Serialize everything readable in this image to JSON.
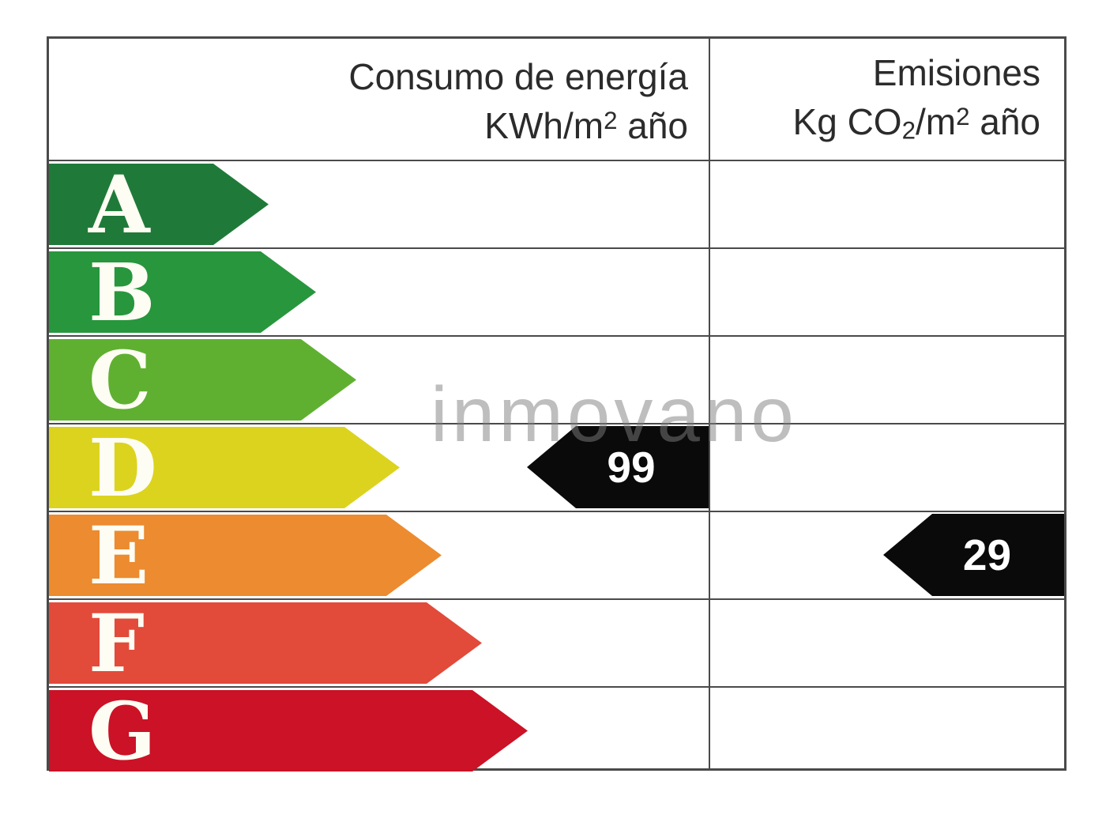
{
  "header": {
    "consumption": {
      "line1": "Consumo de energía",
      "line2_prefix": "KWh/m",
      "line2_sup": "2",
      "line2_suffix": " año"
    },
    "emissions": {
      "line1": "Emisiones",
      "line2_prefix": "Kg CO",
      "line2_sub": "2",
      "line2_mid": "/m",
      "line2_sup": "2",
      "line2_suffix": " año"
    }
  },
  "scale": {
    "rows": [
      {
        "letter": "A",
        "color": "#1f7a39"
      },
      {
        "letter": "B",
        "color": "#27963d"
      },
      {
        "letter": "C",
        "color": "#5fb031"
      },
      {
        "letter": "D",
        "color": "#dcd31f"
      },
      {
        "letter": "E",
        "color": "#ec8b2f"
      },
      {
        "letter": "F",
        "color": "#e24a3a"
      },
      {
        "letter": "G",
        "color": "#cb1226"
      }
    ]
  },
  "ratings": {
    "consumption": {
      "value": "99",
      "letter": "D",
      "marker_color": "#0a0a0a",
      "text_color": "#ffffff"
    },
    "emissions": {
      "value": "29",
      "letter": "E",
      "marker_color": "#0a0a0a",
      "text_color": "#ffffff"
    }
  },
  "watermark": {
    "text": "inmovano"
  },
  "colors": {
    "border": "#4a4a4a",
    "header_text": "#2b2b2b",
    "background": "#ffffff"
  },
  "chart_data": {
    "type": "table",
    "title": "Etiqueta de eficiencia energética",
    "columns": [
      "Consumo de energía KWh/m2 año",
      "Emisiones Kg CO2/m2 año"
    ],
    "scale_letters": [
      "A",
      "B",
      "C",
      "D",
      "E",
      "F",
      "G"
    ],
    "scale_colors": [
      "#1f7a39",
      "#27963d",
      "#5fb031",
      "#dcd31f",
      "#ec8b2f",
      "#e24a3a",
      "#cb1226"
    ],
    "consumption_value": 99,
    "consumption_letter": "D",
    "emissions_value": 29,
    "emissions_letter": "E"
  }
}
